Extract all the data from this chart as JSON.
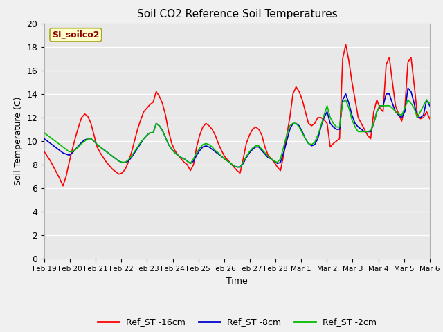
{
  "title": "Soil CO2 Reference Soil Temperatures",
  "xlabel": "Time",
  "ylabel": "Soil Temperature (C)",
  "ylim": [
    0,
    20
  ],
  "fig_facecolor": "#f0f0f0",
  "plot_facecolor": "#e8e8e8",
  "grid_color": "#ffffff",
  "annotation_text": "SI_soilco2",
  "annotation_color": "#8b0000",
  "annotation_bg": "#ffffcc",
  "annotation_edge": "#aaa820",
  "legend_labels": [
    "Ref_ST -16cm",
    "Ref_ST -8cm",
    "Ref_ST -2cm"
  ],
  "legend_colors": [
    "#ff0000",
    "#0000cc",
    "#00bb00"
  ],
  "xtick_labels": [
    "Feb 19",
    "Feb 20",
    "Feb 21",
    "Feb 22",
    "Feb 23",
    "Feb 24",
    "Feb 25",
    "Feb 26",
    "Feb 27",
    "Feb 28",
    "Mar 1",
    "Mar 2",
    "Mar 3",
    "Mar 4",
    "Mar 5",
    "Mar 6"
  ],
  "ytick_vals": [
    0,
    2,
    4,
    6,
    8,
    10,
    12,
    14,
    16,
    18,
    20
  ],
  "ref_st_16cm": [
    9.1,
    8.7,
    8.3,
    7.8,
    7.3,
    6.8,
    6.2,
    7.0,
    8.2,
    9.3,
    10.3,
    11.2,
    12.0,
    12.3,
    12.1,
    11.5,
    10.5,
    9.5,
    9.0,
    8.6,
    8.2,
    7.9,
    7.6,
    7.4,
    7.2,
    7.3,
    7.6,
    8.2,
    9.0,
    10.0,
    11.0,
    11.8,
    12.5,
    12.8,
    13.1,
    13.3,
    14.2,
    13.8,
    13.2,
    12.2,
    10.8,
    9.8,
    9.2,
    8.8,
    8.5,
    8.2,
    8.0,
    7.5,
    8.0,
    9.5,
    10.5,
    11.2,
    11.5,
    11.3,
    11.0,
    10.5,
    9.8,
    9.2,
    8.7,
    8.4,
    8.1,
    7.8,
    7.5,
    7.3,
    8.5,
    9.8,
    10.5,
    11.0,
    11.2,
    11.0,
    10.5,
    9.5,
    8.8,
    8.5,
    8.2,
    7.8,
    7.5,
    8.8,
    10.5,
    12.0,
    14.0,
    14.6,
    14.2,
    13.5,
    12.5,
    11.5,
    11.3,
    11.5,
    12.0,
    12.0,
    11.8,
    11.5,
    9.5,
    9.8,
    10.0,
    10.2,
    17.0,
    18.2,
    16.8,
    15.0,
    13.5,
    12.0,
    11.5,
    11.0,
    10.5,
    10.2,
    12.5,
    13.5,
    12.8,
    12.5,
    16.5,
    17.1,
    15.0,
    13.0,
    12.3,
    11.7,
    12.8,
    16.7,
    17.1,
    14.8,
    12.3,
    11.9,
    12.0,
    12.5,
    11.9
  ],
  "ref_st_8cm": [
    10.2,
    10.0,
    9.8,
    9.6,
    9.4,
    9.2,
    9.0,
    8.9,
    8.8,
    9.0,
    9.3,
    9.6,
    9.9,
    10.1,
    10.2,
    10.2,
    10.0,
    9.7,
    9.5,
    9.3,
    9.1,
    8.9,
    8.7,
    8.5,
    8.3,
    8.2,
    8.2,
    8.3,
    8.6,
    9.0,
    9.4,
    9.8,
    10.2,
    10.5,
    10.7,
    10.7,
    11.5,
    11.3,
    10.9,
    10.3,
    9.7,
    9.3,
    9.0,
    8.8,
    8.6,
    8.5,
    8.3,
    8.1,
    8.3,
    8.8,
    9.2,
    9.5,
    9.6,
    9.5,
    9.3,
    9.1,
    8.9,
    8.7,
    8.5,
    8.3,
    8.1,
    7.9,
    7.8,
    7.8,
    8.1,
    8.6,
    9.0,
    9.3,
    9.5,
    9.5,
    9.2,
    8.9,
    8.6,
    8.5,
    8.3,
    8.1,
    8.2,
    9.0,
    10.0,
    11.0,
    11.5,
    11.5,
    11.3,
    10.8,
    10.2,
    9.8,
    9.6,
    9.7,
    10.2,
    11.2,
    12.0,
    12.5,
    11.5,
    11.2,
    11.0,
    11.0,
    13.5,
    14.0,
    13.2,
    12.2,
    11.5,
    11.2,
    11.0,
    10.8,
    10.8,
    10.8,
    11.5,
    12.5,
    13.0,
    13.0,
    14.0,
    14.0,
    13.2,
    12.5,
    12.2,
    12.0,
    12.5,
    14.5,
    14.2,
    13.2,
    12.0,
    12.0,
    12.2,
    13.5,
    13.0
  ],
  "ref_st_2cm": [
    10.7,
    10.5,
    10.3,
    10.1,
    9.9,
    9.7,
    9.5,
    9.3,
    9.1,
    9.1,
    9.3,
    9.5,
    9.8,
    10.0,
    10.2,
    10.2,
    10.0,
    9.7,
    9.5,
    9.3,
    9.1,
    8.9,
    8.7,
    8.5,
    8.3,
    8.2,
    8.2,
    8.4,
    8.7,
    9.1,
    9.5,
    9.9,
    10.2,
    10.5,
    10.7,
    10.7,
    11.5,
    11.3,
    10.9,
    10.3,
    9.7,
    9.3,
    9.0,
    8.8,
    8.6,
    8.5,
    8.3,
    8.1,
    8.5,
    9.0,
    9.4,
    9.7,
    9.8,
    9.7,
    9.5,
    9.2,
    9.0,
    8.7,
    8.5,
    8.3,
    8.1,
    7.9,
    7.8,
    7.8,
    8.2,
    8.7,
    9.1,
    9.4,
    9.6,
    9.6,
    9.3,
    9.0,
    8.7,
    8.5,
    8.3,
    8.2,
    8.5,
    9.5,
    10.5,
    11.3,
    11.5,
    11.5,
    11.2,
    10.7,
    10.2,
    9.8,
    9.7,
    9.9,
    10.5,
    11.3,
    12.2,
    13.0,
    12.0,
    11.5,
    11.2,
    11.2,
    13.3,
    13.5,
    12.8,
    11.8,
    11.2,
    10.8,
    10.8,
    10.8,
    10.8,
    10.9,
    11.5,
    12.5,
    13.0,
    13.0,
    13.0,
    13.0,
    12.8,
    12.5,
    12.3,
    12.2,
    12.8,
    13.5,
    13.2,
    12.8,
    12.0,
    12.5,
    13.0,
    13.5,
    13.2
  ]
}
